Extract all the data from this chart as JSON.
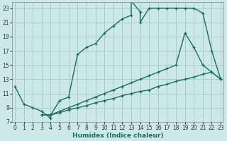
{
  "xlabel": "Humidex (Indice chaleur)",
  "bg_color": "#cce8e8",
  "grid_color": "#aacccc",
  "line_color": "#1a6e60",
  "xlim": [
    -0.3,
    23.3
  ],
  "ylim": [
    7,
    23.8
  ],
  "xticks": [
    0,
    1,
    2,
    3,
    4,
    5,
    6,
    7,
    8,
    9,
    10,
    11,
    12,
    13,
    14,
    15,
    16,
    17,
    18,
    19,
    20,
    21,
    22,
    23
  ],
  "yticks": [
    7,
    9,
    11,
    13,
    15,
    17,
    19,
    21,
    23
  ],
  "line1_x": [
    0,
    1,
    2,
    3,
    4,
    4,
    5,
    6,
    7,
    8,
    9,
    10,
    11,
    12,
    13,
    13,
    14,
    14,
    15,
    16,
    17,
    18,
    19,
    20,
    21,
    22,
    23
  ],
  "line1_y": [
    12,
    9.5,
    9,
    8.5,
    7.5,
    8,
    10,
    10.5,
    16.5,
    17.5,
    18,
    19.5,
    20.5,
    21.5,
    22,
    24,
    22.5,
    21,
    23,
    23,
    23,
    23,
    23,
    23,
    22.3,
    17,
    13
  ],
  "line2_x": [
    3,
    4,
    5,
    6,
    7,
    8,
    9,
    10,
    11,
    12,
    13,
    14,
    15,
    16,
    17,
    18,
    19,
    20,
    21,
    22,
    23
  ],
  "line2_y": [
    8,
    8,
    8.5,
    9,
    9.5,
    10,
    10.5,
    11,
    11.5,
    12,
    12.5,
    13,
    13.5,
    14,
    14.5,
    15,
    19.5,
    17.5,
    15,
    14,
    13
  ],
  "line3_x": [
    3,
    4,
    5,
    6,
    7,
    8,
    9,
    10,
    11,
    12,
    13,
    14,
    15,
    16,
    17,
    18,
    19,
    20,
    21,
    22,
    23
  ],
  "line3_y": [
    8,
    8,
    8.3,
    8.7,
    9,
    9.3,
    9.7,
    10,
    10.3,
    10.7,
    11,
    11.3,
    11.5,
    12,
    12.3,
    12.7,
    13,
    13.3,
    13.7,
    14,
    13
  ]
}
